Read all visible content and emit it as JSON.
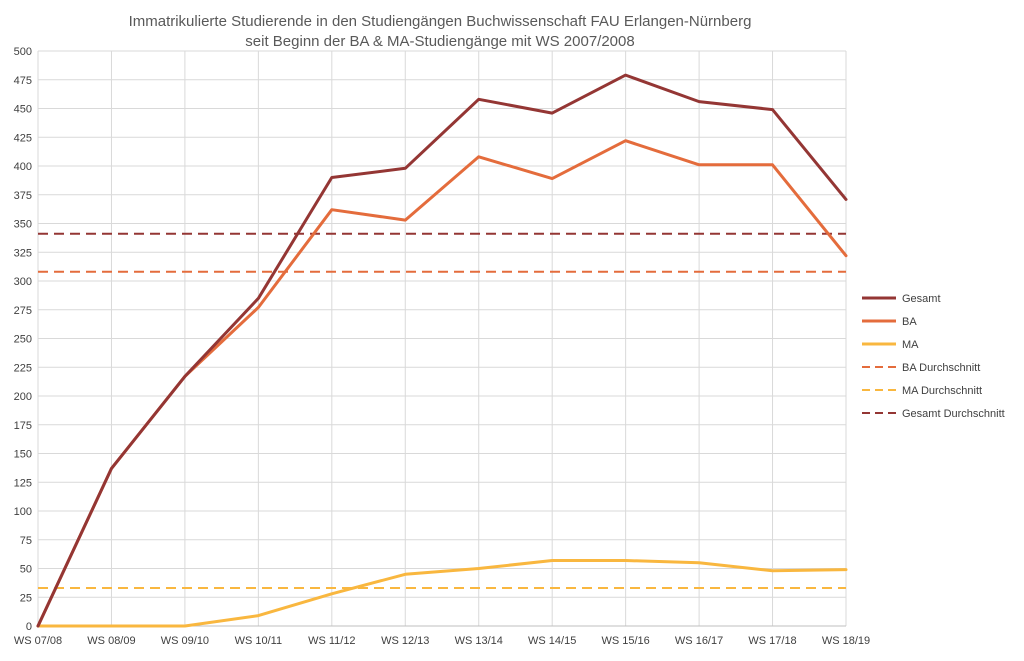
{
  "chart_data": {
    "type": "line",
    "title_lines": [
      "Immatrikulierte Studierende in den Studiengängen Buchwissenschaft FAU Erlangen-Nürnberg",
      "seit Beginn der BA & MA-Studiengänge mit WS 2007/2008"
    ],
    "categories": [
      "WS 07/08",
      "WS 08/09",
      "WS 09/10",
      "WS 10/11",
      "WS 11/12",
      "WS 12/13",
      "WS 13/14",
      "WS 14/15",
      "WS 15/16",
      "WS 16/17",
      "WS 17/18",
      "WS 18/19"
    ],
    "ylim": [
      0,
      500
    ],
    "ytick_step": 25,
    "grid": true,
    "legend_position": "right",
    "series": [
      {
        "name": "Gesamt",
        "color": "#943634",
        "dashed": false,
        "values": [
          0,
          137,
          217,
          285,
          390,
          398,
          458,
          446,
          479,
          456,
          449,
          371
        ]
      },
      {
        "name": "BA",
        "color": "#e46c3c",
        "dashed": false,
        "values": [
          0,
          137,
          217,
          277,
          362,
          353,
          408,
          389,
          422,
          401,
          401,
          322
        ]
      },
      {
        "name": "MA",
        "color": "#f9b73f",
        "dashed": false,
        "values": [
          0,
          0,
          0,
          9,
          28,
          45,
          50,
          57,
          57,
          55,
          48,
          49
        ]
      },
      {
        "name": "BA Durchschnitt",
        "color": "#e46c3c",
        "dashed": true,
        "values": [
          308,
          308,
          308,
          308,
          308,
          308,
          308,
          308,
          308,
          308,
          308,
          308
        ]
      },
      {
        "name": "MA Durchschnitt",
        "color": "#f9b73f",
        "dashed": true,
        "values": [
          33,
          33,
          33,
          33,
          33,
          33,
          33,
          33,
          33,
          33,
          33,
          33
        ]
      },
      {
        "name": "Gesamt Durchschnitt",
        "color": "#943634",
        "dashed": true,
        "values": [
          341,
          341,
          341,
          341,
          341,
          341,
          341,
          341,
          341,
          341,
          341,
          341
        ]
      }
    ]
  }
}
